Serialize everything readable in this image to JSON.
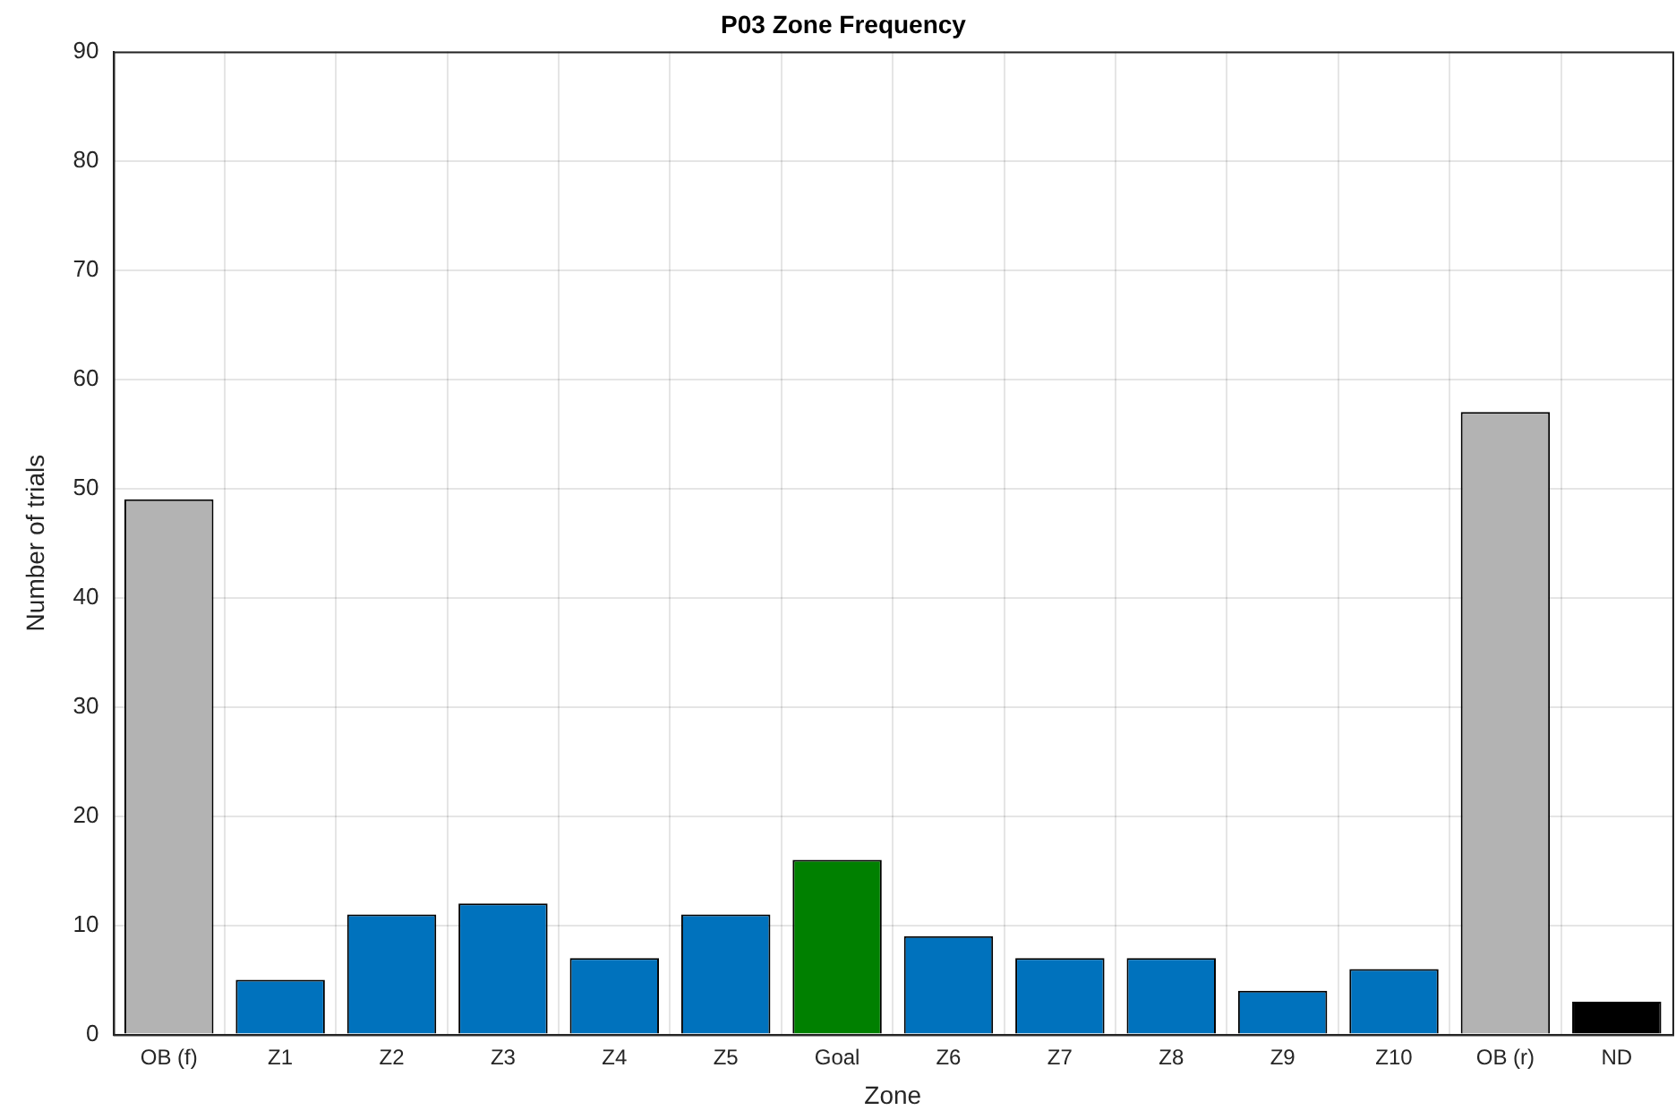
{
  "chart_data": {
    "type": "bar",
    "title": "P03 Zone Frequency",
    "xlabel": "Zone",
    "ylabel": "Number of trials",
    "categories": [
      "OB (f)",
      "Z1",
      "Z2",
      "Z3",
      "Z4",
      "Z5",
      "Goal",
      "Z6",
      "Z7",
      "Z8",
      "Z9",
      "Z10",
      "OB (r)",
      "ND"
    ],
    "values": [
      49,
      5,
      11,
      12,
      7,
      11,
      16,
      9,
      7,
      7,
      4,
      6,
      57,
      3
    ],
    "colors": [
      "#b3b3b3",
      "#0072bd",
      "#0072bd",
      "#0072bd",
      "#0072bd",
      "#0072bd",
      "#008000",
      "#0072bd",
      "#0072bd",
      "#0072bd",
      "#0072bd",
      "#0072bd",
      "#b3b3b3",
      "#000000"
    ],
    "ylim": [
      0,
      90
    ],
    "yticks": [
      0,
      10,
      20,
      30,
      40,
      50,
      60,
      70,
      80,
      90
    ],
    "grid": true
  }
}
